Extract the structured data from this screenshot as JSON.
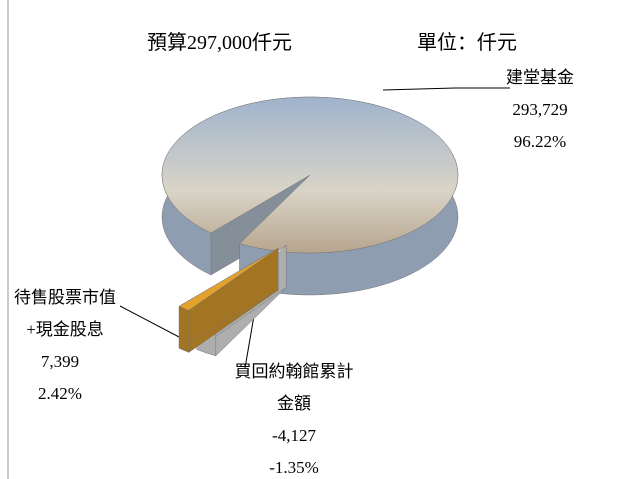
{
  "chart_data": {
    "type": "pie",
    "title": "預算297,000仟元",
    "subtitle": "單位：仟元",
    "categories": [
      "建堂基金",
      "待售股票市值+現金股息",
      "買回約翰館累計金額"
    ],
    "values": [
      293729,
      7399,
      -4127
    ],
    "value_labels": [
      "293,729",
      "7,399",
      "-4,127"
    ],
    "percents": [
      96.22,
      2.42,
      -1.35
    ],
    "percent_labels": [
      "96.22%",
      "2.42%",
      "-1.35%"
    ],
    "colors": [
      "#b9c6d6",
      "#f2f2f2",
      "#e3a12e"
    ]
  }
}
